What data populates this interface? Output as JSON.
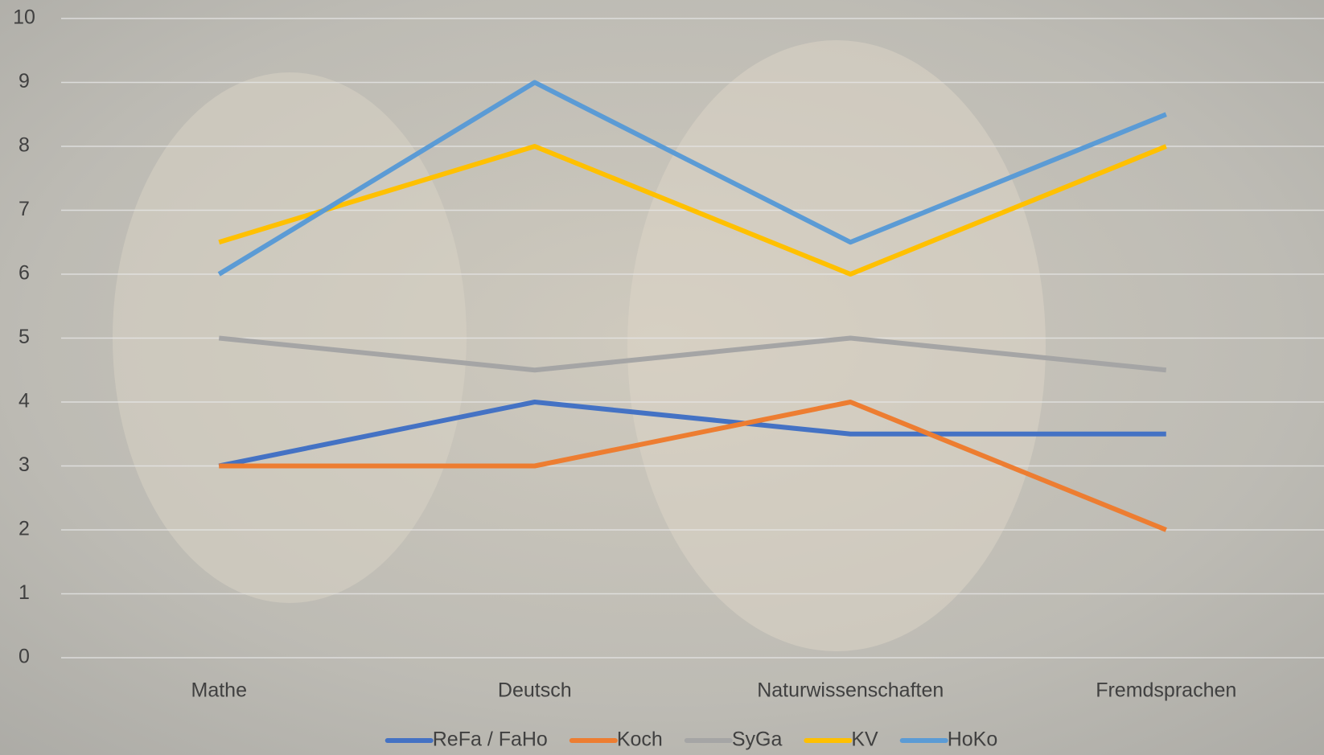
{
  "chart_data": {
    "type": "line",
    "categories": [
      "Mathe",
      "Deutsch",
      "Naturwissenschaften",
      "Fremdsprachen"
    ],
    "series": [
      {
        "name": "ReFa / FaHo",
        "color": "#4472c4",
        "values": [
          3,
          4,
          3.5,
          3.5
        ]
      },
      {
        "name": "Koch",
        "color": "#ed7d31",
        "values": [
          3,
          3,
          4,
          2
        ]
      },
      {
        "name": "SyGa",
        "color": "#a5a5a5",
        "values": [
          5,
          4.5,
          5,
          4.5
        ]
      },
      {
        "name": "KV",
        "color": "#ffc000",
        "values": [
          6.5,
          8,
          6,
          8
        ]
      },
      {
        "name": "HoKo",
        "color": "#5b9bd5",
        "values": [
          6,
          9,
          6.5,
          8.5
        ]
      }
    ],
    "ylim": [
      0,
      10
    ],
    "yticks": [
      0,
      1,
      2,
      3,
      4,
      5,
      6,
      7,
      8,
      9,
      10
    ],
    "grid": true,
    "legend": "bottom"
  }
}
